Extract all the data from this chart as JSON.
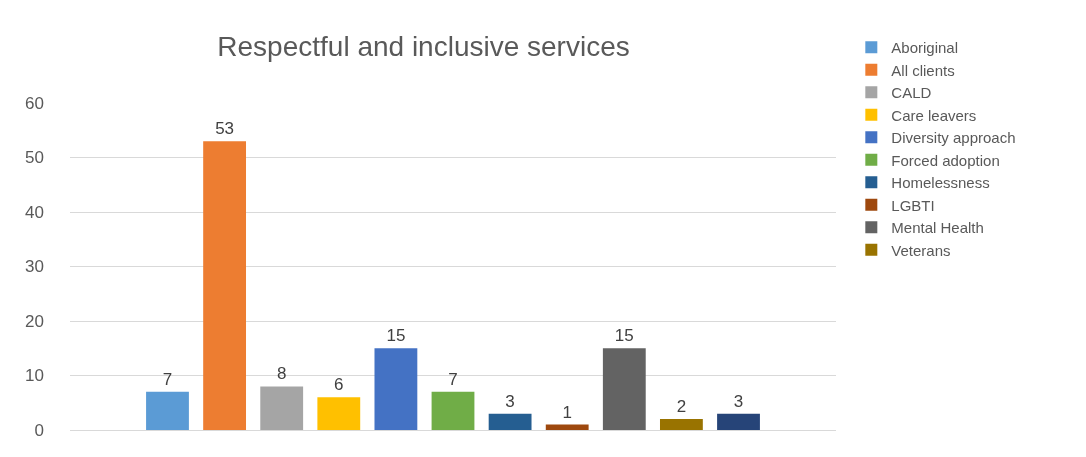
{
  "chart_data": {
    "type": "bar",
    "title": "Respectful and inclusive services",
    "categories": [
      null
    ],
    "series": [
      {
        "name": "Aboriginal",
        "color": "#5b9bd5",
        "values": [
          7
        ]
      },
      {
        "name": "All clients",
        "color": "#ed7d31",
        "values": [
          53
        ]
      },
      {
        "name": "CALD",
        "color": "#a5a5a5",
        "values": [
          8
        ]
      },
      {
        "name": "Care leavers",
        "color": "#ffc000",
        "values": [
          6
        ]
      },
      {
        "name": "Diversity approach",
        "color": "#4472c4",
        "values": [
          15
        ]
      },
      {
        "name": "Forced adoption",
        "color": "#70ad47",
        "values": [
          7
        ]
      },
      {
        "name": "Homelessness",
        "color": "#255e91",
        "values": [
          3
        ]
      },
      {
        "name": "LGBTI",
        "color": "#9e480e",
        "values": [
          1
        ]
      },
      {
        "name": "Mental Health",
        "color": "#636363",
        "values": [
          15
        ]
      },
      {
        "name": "Veterans",
        "color": "#997300",
        "values": [
          2
        ]
      },
      {
        "color": "#264478",
        "values": [
          3
        ]
      }
    ],
    "ylim": [
      0,
      60
    ],
    "yticks": [
      0,
      10,
      20,
      30,
      40,
      50,
      60
    ],
    "grid": "y",
    "legend": "right",
    "data_labels": true
  }
}
